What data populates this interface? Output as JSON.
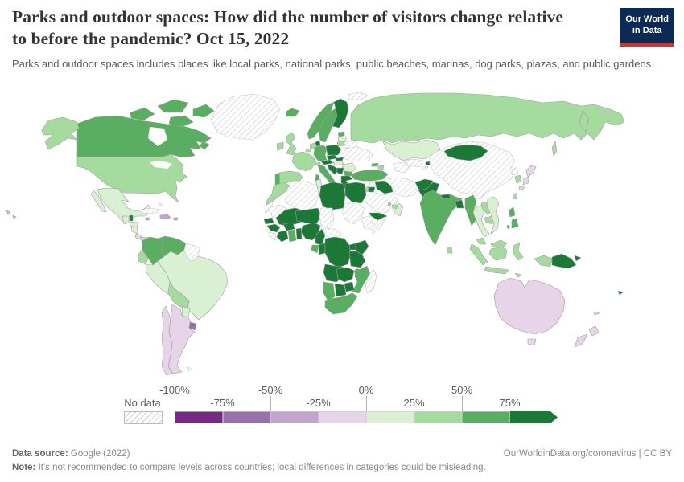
{
  "header": {
    "title": "Parks and outdoor spaces: How did the number of visitors change relative to before the pandemic? Oct 15, 2022",
    "subtitle": "Parks and outdoor spaces includes places like local parks, national parks, public beaches, marinas, dog parks, plazas, and public gardens.",
    "logo": {
      "line1": "Our World",
      "line2": "in Data",
      "bg_color": "#0b2a54",
      "accent_color": "#d0342c"
    }
  },
  "chart_data": {
    "type": "choropleth",
    "title": "Parks and outdoor spaces: How did the number of visitors change relative to before the pandemic?",
    "date_label": "Oct 15, 2022",
    "unit": "% change in visitors vs pre-pandemic baseline",
    "map_style": {
      "ocean": "#ffffff",
      "border": "#9e9e9e",
      "no_data_hatch": "#cfcfcf"
    },
    "legend": {
      "no_data_label": "No data",
      "bins": [
        {
          "key": "-100--75",
          "label": "-100% to -75%",
          "color": "#762a83"
        },
        {
          "key": "-75--50",
          "label": "-75% to -50%",
          "color": "#9970ab"
        },
        {
          "key": "-50--25",
          "label": "-50% to -25%",
          "color": "#c2a5cf"
        },
        {
          "key": "-25-0",
          "label": "-25% to 0%",
          "color": "#e7d4e8"
        },
        {
          "key": "0-25",
          "label": "0% to 25%",
          "color": "#d9f0d3"
        },
        {
          "key": "25-50",
          "label": "25% to 50%",
          "color": "#a6dba0"
        },
        {
          "key": "50-75",
          "label": "50% to 75%",
          "color": "#5aae61"
        },
        {
          "key": "75+",
          "label": "75%+",
          "color": "#1b7837"
        }
      ],
      "ticks": [
        {
          "label": "-100%",
          "index": 0,
          "row": "top"
        },
        {
          "label": "-75%",
          "index": 1,
          "row": "bottom"
        },
        {
          "label": "-50%",
          "index": 2,
          "row": "top"
        },
        {
          "label": "-25%",
          "index": 3,
          "row": "bottom"
        },
        {
          "label": "0%",
          "index": 4,
          "row": "top"
        },
        {
          "label": "25%",
          "index": 5,
          "row": "bottom"
        },
        {
          "label": "50%",
          "index": 6,
          "row": "top"
        },
        {
          "label": "75%",
          "index": 7,
          "row": "bottom"
        }
      ]
    },
    "countries": {
      "Greenland": "no-data",
      "Svalbard": "no-data",
      "Canada": "50-75",
      "United States": "25-50",
      "Mexico": "0-25",
      "Belize": "75+",
      "Guatemala": "0-25",
      "Honduras": "0-25",
      "Nicaragua": "0-25",
      "Costa Rica": "-25-0",
      "Panama": "-25-0",
      "Cuba": "no-data",
      "Jamaica": "-50--25",
      "Dominican Republic": "-50--25",
      "Puerto Rico": "-50--25",
      "Bahamas": "no-data",
      "Colombia": "50-75",
      "Venezuela": "50-75",
      "Guyana": "no-data",
      "Ecuador": "25-50",
      "Peru": "0-25",
      "Brazil": "0-25",
      "Bolivia": "25-50",
      "Paraguay": "0-25",
      "Uruguay": "-75--50",
      "Argentina": "-25-0",
      "Chile": "-25-0",
      "Falkland Islands": "no-data",
      "Iceland": "50-75",
      "Ireland": "25-50",
      "United Kingdom": "25-50",
      "Portugal": "50-75",
      "Spain": "25-50",
      "France": "25-50",
      "Belgium": "25-50",
      "Netherlands": "25-50",
      "Germany": "50-75",
      "Denmark": "75+",
      "Norway": "50-75",
      "Sweden": "50-75",
      "Finland": "75+",
      "Estonia": "50-75",
      "Latvia": "0-25",
      "Lithuania": "25-50",
      "Belarus": "no-data",
      "Poland": "75+",
      "Czechia": "75+",
      "Austria": "75+",
      "Switzerland": "25-50",
      "Slovakia": "75+",
      "Hungary": "0-25",
      "Ukraine": "no-data",
      "Romania": "0-25",
      "Croatia": "75+",
      "Serbia": "75+",
      "Bulgaria": "50-75",
      "Greece": "75+",
      "Italy": "50-75",
      "Russia": "25-50",
      "Kazakhstan": "0-25",
      "Uzbekistan": "no-data",
      "Turkmenistan": "no-data",
      "Kyrgyzstan": "75+",
      "Tajikistan": "no-data",
      "Georgia": "50-75",
      "Azerbaijan": "25-50",
      "Turkey": "50-75",
      "Cyprus": "0-25",
      "Syria": "no-data",
      "Israel": "25-50",
      "Jordan": "75+",
      "Iraq": "75+",
      "Iran": "no-data",
      "Saudi Arabia": "no-data",
      "Qatar": "25-50",
      "United Arab Emirates": "25-50",
      "Oman": "0-25",
      "Yemen": "75+",
      "Afghanistan": "75+",
      "Pakistan": "75+",
      "India": "50-75",
      "Nepal": "75+",
      "Bangladesh": "75+",
      "Sri Lanka": "25-50",
      "Myanmar": "50-75",
      "Thailand": "0-25",
      "Laos": "25-50",
      "Cambodia": "25-50",
      "Vietnam": "0-25",
      "China": "no-data",
      "Mongolia": "75+",
      "North Korea": "no-data",
      "South Korea": "25-50",
      "Japan": "-25-0",
      "Taiwan": "25-50",
      "Philippines": "50-75",
      "Malaysia": "25-50",
      "Indonesia": "25-50",
      "Papua New Guinea": "75+",
      "Australia": "-25-0",
      "New Zealand": "-25-0",
      "Fiji": "75+",
      "New Caledonia": "-25-0",
      "Morocco": "25-50",
      "Western Sahara": "no-data",
      "Algeria": "no-data",
      "Tunisia": "0-25",
      "Libya": "75+",
      "Egypt": "75+",
      "Mauritania": "no-data",
      "Mali": "75+",
      "Niger": "75+",
      "Chad": "no-data",
      "Sudan": "no-data",
      "Ethiopia": "no-data",
      "Somalia": "no-data",
      "Senegal": "75+",
      "Guinea": "75+",
      "Sierra Leone": "no-data",
      "Cote d'Ivoire": "75+",
      "Burkina Faso": "75+",
      "Ghana": "50-75",
      "Benin": "75+",
      "Nigeria": "75+",
      "Cameroon": "75+",
      "Central African Republic": "no-data",
      "Gabon": "50-75",
      "Congo": "75+",
      "DR Congo": "75+",
      "Uganda": "75+",
      "Kenya": "75+",
      "Tanzania": "75+",
      "Angola": "75+",
      "Zambia": "75+",
      "Malawi": "75+",
      "Mozambique": "50-75",
      "Zimbabwe": "75+",
      "Botswana": "75+",
      "Namibia": "50-75",
      "South Africa": "50-75",
      "Madagascar": "no-data"
    }
  },
  "footer": {
    "datasource_label": "Data source:",
    "datasource_value": "Google (2022)",
    "credit": "OurWorldinData.org/coronavirus | CC BY",
    "note_label": "Note:",
    "note_text": "It's not recommended to compare levels across countries; local differences in categories could be misleading."
  }
}
